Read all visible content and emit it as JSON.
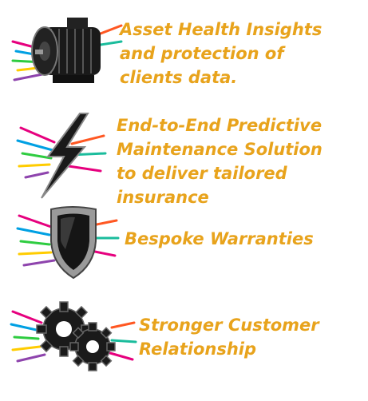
{
  "colors": {
    "accent": "#e8a31c",
    "icon_dark": "#111111",
    "streaks": [
      "#e6007e",
      "#00a0e3",
      "#2ecc40",
      "#ffcc00",
      "#8e44ad",
      "#ff5722",
      "#1abc9c"
    ]
  },
  "items": [
    {
      "icon": "electric-motor-icon",
      "lines": [
        "Asset Health Insights",
        "and protection of",
        "clients data."
      ]
    },
    {
      "icon": "lightning-bolt-icon",
      "lines": [
        "End-to-End Predictive",
        "Maintenance Solution",
        "to deliver tailored",
        "insurance"
      ]
    },
    {
      "icon": "shield-icon",
      "lines": [
        "Bespoke Warranties"
      ]
    },
    {
      "icon": "gears-icon",
      "lines": [
        "Stronger Customer",
        "Relationship"
      ]
    }
  ]
}
